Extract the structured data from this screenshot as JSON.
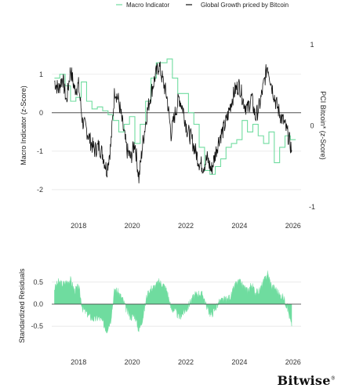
{
  "legend": {
    "macro_label": "Macro Indicator",
    "btc_label": "Global Growth priced by Bitcoin"
  },
  "colors": {
    "macro": "#6fdc9f",
    "btc": "#111111",
    "residual_fill": "#6fdc9f",
    "zero_line": "#333333",
    "grid": "#e6e6e6"
  },
  "logo": "Bitwise",
  "chart_data": [
    {
      "type": "line",
      "ylabel": "Macro Indicator (z-Score)",
      "y2label": "PCI Bitcoin* (z-Score)",
      "xlim": [
        2017.0,
        2026.3
      ],
      "ylim": [
        -2.45,
        1.75
      ],
      "y2lim": [
        -1.0,
        1.0
      ],
      "x_ticks": [
        2018,
        2020,
        2022,
        2024,
        2026
      ],
      "y_ticks": [
        1,
        0,
        -1,
        -2
      ],
      "y2_ticks": [
        1,
        0,
        -1
      ],
      "grid": "horizontal",
      "legend_position": "top-right",
      "series": [
        {
          "name": "Macro Indicator",
          "style": "step",
          "x": [
            2017.1,
            2017.3,
            2017.5,
            2017.7,
            2017.9,
            2018.1,
            2018.3,
            2018.5,
            2018.7,
            2018.9,
            2019.1,
            2019.3,
            2019.5,
            2019.7,
            2019.9,
            2020.1,
            2020.3,
            2020.5,
            2020.7,
            2020.9,
            2021.1,
            2021.3,
            2021.5,
            2021.7,
            2021.9,
            2022.1,
            2022.3,
            2022.5,
            2022.7,
            2022.9,
            2023.1,
            2023.3,
            2023.5,
            2023.7,
            2023.9,
            2024.1,
            2024.3,
            2024.5,
            2024.7,
            2024.9,
            2025.1,
            2025.3,
            2025.5,
            2025.7,
            2025.9
          ],
          "y": [
            0.9,
            1.0,
            0.7,
            0.3,
            0.4,
            0.8,
            0.3,
            0.1,
            0.15,
            0.05,
            -0.05,
            -0.2,
            -0.5,
            -0.3,
            -0.1,
            -0.8,
            -0.3,
            0.3,
            0.9,
            1.3,
            1.3,
            1.4,
            0.9,
            0.5,
            0.5,
            0.0,
            -0.3,
            -0.9,
            -1.5,
            -1.6,
            -1.4,
            -1.2,
            -0.9,
            -0.8,
            -0.7,
            -0.2,
            -0.5,
            -0.3,
            -0.6,
            -0.8,
            -0.5,
            -1.3,
            -0.9,
            -0.6,
            -0.7
          ]
        },
        {
          "name": "Global Growth priced by Bitcoin",
          "axis": "right",
          "x": [
            2017.1,
            2017.25,
            2017.4,
            2017.55,
            2017.7,
            2017.85,
            2018.0,
            2018.15,
            2018.3,
            2018.45,
            2018.6,
            2018.75,
            2018.9,
            2019.05,
            2019.2,
            2019.35,
            2019.5,
            2019.65,
            2019.8,
            2019.95,
            2020.1,
            2020.25,
            2020.4,
            2020.55,
            2020.7,
            2020.85,
            2021.0,
            2021.15,
            2021.3,
            2021.45,
            2021.6,
            2021.75,
            2021.9,
            2022.05,
            2022.2,
            2022.35,
            2022.5,
            2022.65,
            2022.8,
            2022.95,
            2023.1,
            2023.25,
            2023.4,
            2023.55,
            2023.7,
            2023.85,
            2024.0,
            2024.15,
            2024.3,
            2024.45,
            2024.6,
            2024.75,
            2024.9,
            2025.05,
            2025.2,
            2025.35,
            2025.5,
            2025.65,
            2025.8,
            2025.95
          ],
          "y": [
            0.55,
            0.45,
            0.6,
            0.3,
            0.7,
            0.45,
            0.5,
            0.05,
            -0.05,
            -0.2,
            -0.3,
            -0.25,
            -0.35,
            -0.55,
            -0.25,
            0.45,
            0.3,
            0.0,
            -0.3,
            -0.4,
            -0.2,
            -0.65,
            -0.2,
            0.15,
            0.4,
            0.6,
            0.75,
            0.55,
            0.35,
            -0.1,
            0.15,
            0.35,
            0.2,
            -0.05,
            -0.15,
            -0.3,
            -0.45,
            -0.5,
            -0.4,
            -0.55,
            -0.35,
            -0.15,
            -0.05,
            0.1,
            0.3,
            0.45,
            0.5,
            0.3,
            0.2,
            0.35,
            0.1,
            0.25,
            0.5,
            0.75,
            0.5,
            0.3,
            0.15,
            0.05,
            -0.1,
            -0.3
          ]
        }
      ]
    },
    {
      "type": "area",
      "ylabel": "Standardized Residuals",
      "xlim": [
        2017.0,
        2026.3
      ],
      "ylim": [
        -0.78,
        0.78
      ],
      "x_ticks": [
        2018,
        2020,
        2022,
        2024,
        2026
      ],
      "y_ticks": [
        0.5,
        0.0,
        -0.5
      ],
      "grid": "horizontal",
      "series": [
        {
          "x": [
            2017.1,
            2017.25,
            2017.4,
            2017.55,
            2017.7,
            2017.85,
            2018.0,
            2018.15,
            2018.3,
            2018.45,
            2018.6,
            2018.75,
            2018.9,
            2019.05,
            2019.2,
            2019.35,
            2019.5,
            2019.65,
            2019.8,
            2019.95,
            2020.1,
            2020.25,
            2020.4,
            2020.55,
            2020.7,
            2020.85,
            2021.0,
            2021.15,
            2021.3,
            2021.45,
            2021.6,
            2021.75,
            2021.9,
            2022.05,
            2022.2,
            2022.35,
            2022.5,
            2022.65,
            2022.8,
            2022.95,
            2023.1,
            2023.25,
            2023.4,
            2023.55,
            2023.7,
            2023.85,
            2024.0,
            2024.15,
            2024.3,
            2024.45,
            2024.6,
            2024.75,
            2024.9,
            2025.05,
            2025.2,
            2025.35,
            2025.5,
            2025.65,
            2025.8,
            2025.95
          ],
          "y": [
            0.35,
            0.5,
            0.45,
            0.5,
            0.55,
            0.3,
            0.4,
            -0.1,
            -0.2,
            -0.3,
            -0.35,
            -0.3,
            -0.4,
            -0.6,
            -0.35,
            0.35,
            0.25,
            0.1,
            -0.15,
            -0.3,
            -0.25,
            -0.6,
            -0.3,
            0.2,
            0.35,
            0.4,
            0.5,
            0.45,
            0.3,
            -0.1,
            -0.15,
            -0.3,
            -0.2,
            -0.1,
            0.1,
            0.2,
            0.25,
            0.2,
            -0.1,
            -0.25,
            -0.1,
            0.05,
            0.1,
            0.1,
            0.2,
            0.45,
            0.5,
            0.4,
            0.3,
            0.45,
            0.25,
            0.3,
            0.5,
            0.7,
            0.4,
            0.35,
            0.2,
            0.15,
            -0.1,
            -0.5
          ]
        }
      ]
    }
  ]
}
